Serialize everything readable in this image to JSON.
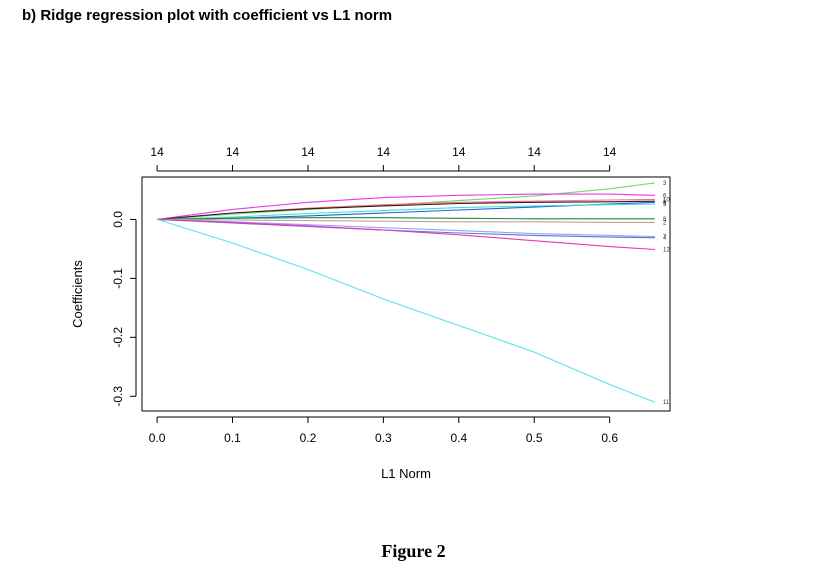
{
  "heading": "b)   Ridge regression plot with coefficient vs L1 norm",
  "caption": "Figure 2",
  "chart_data": {
    "type": "line",
    "title": "",
    "xlabel": "L1 Norm",
    "ylabel": "Coefficients",
    "xlim": [
      -0.02,
      0.68
    ],
    "ylim": [
      -0.325,
      0.072
    ],
    "x_ticks": [
      "0.0",
      "0.1",
      "0.2",
      "0.3",
      "0.4",
      "0.5",
      "0.6"
    ],
    "y_ticks": [
      "0.0",
      "-0.1",
      "-0.2",
      "-0.3"
    ],
    "top_axis_ticks": [
      "14",
      "14",
      "14",
      "14",
      "14",
      "14",
      "14"
    ],
    "grid": false,
    "x": [
      0,
      0.1,
      0.2,
      0.3,
      0.4,
      0.5,
      0.6,
      0.66
    ],
    "series": [
      {
        "label": "3",
        "color": "#7fd36b",
        "values": [
          0,
          0.009,
          0.017,
          0.024,
          0.032,
          0.04,
          0.052,
          0.062
        ]
      },
      {
        "label": "6",
        "color": "#e838e8",
        "values": [
          0,
          0.017,
          0.029,
          0.037,
          0.041,
          0.043,
          0.043,
          0.041
        ]
      },
      {
        "label": "10",
        "color": "#ff6f8a",
        "values": [
          0,
          0.011,
          0.019,
          0.025,
          0.029,
          0.031,
          0.033,
          0.034
        ]
      },
      {
        "label": "1",
        "color": "#222222",
        "values": [
          0,
          0.011,
          0.018,
          0.023,
          0.027,
          0.029,
          0.03,
          0.031
        ]
      },
      {
        "label": "9",
        "color": "#2060d8",
        "values": [
          0,
          0.002,
          0.006,
          0.011,
          0.016,
          0.021,
          0.026,
          0.029
        ]
      },
      {
        "label": "5",
        "color": "#4dd8d8",
        "values": [
          0,
          0.004,
          0.01,
          0.015,
          0.02,
          0.023,
          0.025,
          0.026
        ]
      },
      {
        "label": "8",
        "color": "#1f8a3c",
        "values": [
          0,
          0.002,
          0.003,
          0.003,
          0.002,
          0.001,
          0.001,
          0.001
        ]
      },
      {
        "label": "2",
        "color": "#c8a0a0",
        "values": [
          0,
          -0.001,
          -0.002,
          -0.003,
          -0.004,
          -0.004,
          -0.005,
          -0.005
        ]
      },
      {
        "label": "7",
        "color": "#9aa0ff",
        "values": [
          0,
          -0.004,
          -0.009,
          -0.014,
          -0.019,
          -0.024,
          -0.027,
          -0.029
        ]
      },
      {
        "label": "4",
        "color": "#5577cc",
        "values": [
          0,
          -0.006,
          -0.012,
          -0.018,
          -0.023,
          -0.027,
          -0.03,
          -0.031
        ]
      },
      {
        "label": "12",
        "color": "#e83ab0",
        "values": [
          0,
          -0.005,
          -0.011,
          -0.018,
          -0.026,
          -0.036,
          -0.046,
          -0.051
        ]
      },
      {
        "label": "11",
        "color": "#5ce0f0",
        "values": [
          0,
          -0.04,
          -0.085,
          -0.135,
          -0.18,
          -0.225,
          -0.28,
          -0.31
        ]
      }
    ]
  }
}
